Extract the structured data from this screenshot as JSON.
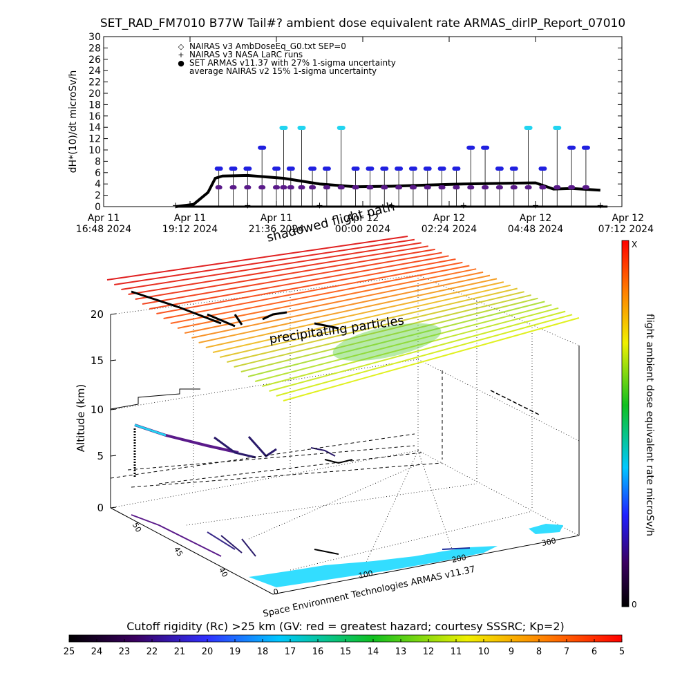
{
  "title": "SET_RAD_FM7010  B77W Tail#? ambient dose equivalent rate ARMAS_dirlP_Report_07010",
  "top_chart": {
    "ylabel": "dH*(10)/dt microSv/h",
    "ylim": [
      0,
      30
    ],
    "yticks": [
      0,
      2,
      4,
      6,
      8,
      10,
      12,
      14,
      16,
      18,
      20,
      22,
      24,
      26,
      28,
      30
    ],
    "x_tick_labels": [
      {
        "line1": "Apr 11",
        "line2": "16:48 2024"
      },
      {
        "line1": "Apr 11",
        "line2": "19:12 2024"
      },
      {
        "line1": "Apr 11",
        "line2": "21:36 2024"
      },
      {
        "line1": "Apr 12",
        "line2": "00:00 2024"
      },
      {
        "line1": "Apr 12",
        "line2": "02:24 2024"
      },
      {
        "line1": "Apr 12",
        "line2": "04:48 2024"
      },
      {
        "line1": "Apr 12",
        "line2": "07:12 2024"
      }
    ],
    "legend": [
      {
        "symbol": "◇",
        "text": "NAIRAS v3 AmbDoseEq_G0.txt SEP=0",
        "color": "#000000"
      },
      {
        "symbol": "+",
        "text": "NAIRAS v3 NASA LaRC runs",
        "color": "#000000"
      },
      {
        "symbol": "●",
        "text": "SET ARMAS v11.37 with 27% 1-sigma uncertainty",
        "color": "#2020e0"
      },
      {
        "symbol": "",
        "text": "average NAIRAS v2 15% 1-sigma uncertainty",
        "color": "#000000"
      }
    ]
  },
  "annotations": {
    "shadowed_flight_path": "shadowed flight path",
    "precipitating_particles": "precipitating particles",
    "credit": "Space Environment Technologies ARMAS v11.37"
  },
  "three_d": {
    "zlabel": "Altitude (km)",
    "zticks": [
      0,
      5,
      10,
      15,
      20
    ],
    "lat_ticks": [
      "40",
      "45",
      "50"
    ],
    "lon_ticks": [
      "0",
      "100",
      "200",
      "300"
    ]
  },
  "right_colorbar": {
    "label": "flight ambient dose equivalent rate microSv/h",
    "top_label": "X",
    "bottom_label": "0"
  },
  "bottom_colorbar": {
    "label": "Cutoff rigidity (Rc) >25 km (GV: red = greatest hazard; courtesy SSSRC; Kp=2)",
    "ticks": [
      "25",
      "24",
      "23",
      "22",
      "21",
      "20",
      "19",
      "18",
      "17",
      "16",
      "15",
      "14",
      "13",
      "12",
      "11",
      "10",
      "9",
      "8",
      "7",
      "6",
      "5"
    ]
  },
  "colors": {
    "armas": "#2020e0",
    "armas_high": "#22d4f0",
    "armas_purple": "#5a1a8a",
    "nairas": "#000000",
    "cyan_region": "#33ddff"
  },
  "chart_data": [
    {
      "type": "scatter",
      "title": "SET_RAD_FM7010  B77W Tail#? ambient dose equivalent rate ARMAS_dirlP_Report_07010",
      "ylabel": "dH*(10)/dt microSv/h",
      "ylim": [
        0,
        30
      ],
      "x_unit": "hours after Apr 11 16:48 2024",
      "xlim": [
        0,
        14.4
      ],
      "grid": false,
      "legend_position": "top-left",
      "series": [
        {
          "name": "NAIRAS v3 AmbDoseEq_G0.txt SEP=0",
          "style": "line",
          "x": [
            2.0,
            2.5,
            2.9,
            3.1,
            3.3,
            4.0,
            5.0,
            6.0,
            7.0,
            8.0,
            9.0,
            10.0,
            11.0,
            12.0,
            12.5,
            13.0,
            13.8
          ],
          "y": [
            0.0,
            0.4,
            2.5,
            5.0,
            5.4,
            5.5,
            5.0,
            4.0,
            3.5,
            3.6,
            3.8,
            4.0,
            4.1,
            4.2,
            3.1,
            3.2,
            2.9
          ]
        },
        {
          "name": "NAIRAS v3 NASA LaRC runs",
          "style": "plus",
          "x": [
            2.0,
            4.0,
            6.0,
            8.0,
            10.0,
            12.0,
            13.8
          ],
          "y": [
            0.2,
            0.2,
            0.2,
            0.2,
            0.2,
            0.2,
            0.2
          ]
        },
        {
          "name": "SET ARMAS v11.37 with 27% 1-sigma uncertainty",
          "style": "dots",
          "x": [
            3.2,
            3.6,
            4.0,
            4.4,
            4.8,
            5.0,
            5.2,
            5.5,
            5.8,
            6.2,
            6.6,
            7.0,
            7.4,
            7.8,
            8.2,
            8.6,
            9.0,
            9.4,
            9.8,
            10.2,
            10.6,
            11.0,
            11.4,
            11.8,
            12.2,
            12.6,
            13.0,
            13.4
          ],
          "y": [
            6.7,
            6.7,
            6.7,
            10.4,
            6.7,
            13.9,
            6.7,
            13.9,
            6.7,
            6.7,
            13.9,
            6.7,
            6.7,
            6.7,
            6.7,
            6.7,
            6.7,
            6.7,
            6.7,
            10.4,
            10.4,
            6.7,
            6.7,
            13.9,
            6.7,
            13.9,
            10.4,
            10.4
          ]
        },
        {
          "name": "average NAIRAS v2 15% 1-sigma uncertainty",
          "style": "line",
          "x": [
            2.0,
            14.0
          ],
          "y": [
            0.0,
            0.0
          ]
        }
      ]
    }
  ]
}
